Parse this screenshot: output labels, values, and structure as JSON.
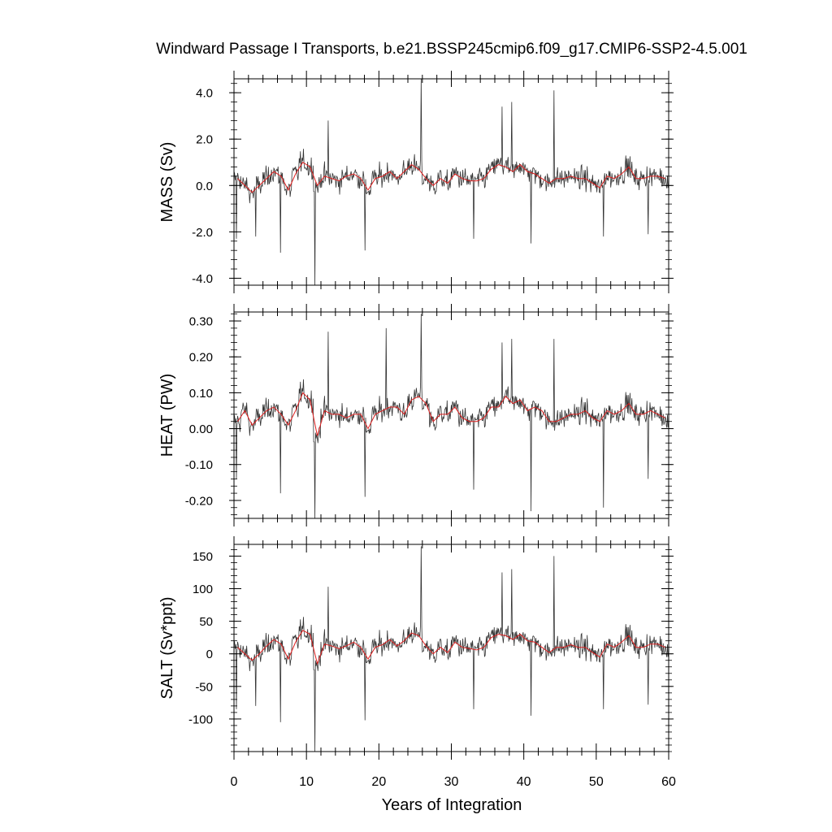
{
  "chart_data": [
    {
      "type": "line",
      "title": "Windward Passage I Transports, b.e21.BSSP245cmip6.f09_g17.CMIP6-SSP2-4.5.001",
      "xlabel": "Years of Integration",
      "xlim": [
        0,
        60
      ],
      "x_ticks": [
        "0",
        "10",
        "20",
        "30",
        "40",
        "50",
        "60"
      ],
      "panels": [
        {
          "ylabel": "MASS (Sv)",
          "ylim": [
            -4.3,
            4.6
          ],
          "y_ticks": [
            {
              "value": -4.0,
              "label": "-4.0"
            },
            {
              "value": -2.0,
              "label": "-2.0"
            },
            {
              "value": 0.0,
              "label": "0.0"
            },
            {
              "value": 2.0,
              "label": "2.0"
            },
            {
              "value": 4.0,
              "label": "4.0"
            }
          ],
          "annual_x": [
            0.5,
            1.5,
            2.5,
            3.5,
            4.5,
            5.5,
            6.5,
            7.5,
            8.5,
            9.5,
            10.5,
            11.5,
            12.5,
            13.5,
            14.5,
            15.5,
            16.5,
            17.5,
            18.5,
            19.5,
            20.5,
            21.5,
            22.5,
            23.5,
            24.5,
            25.5,
            26.5,
            27.5,
            28.5,
            29.5,
            30.5,
            31.5,
            32.5,
            33.5,
            34.5,
            35.5,
            36.5,
            37.5,
            38.5,
            39.5,
            40.5,
            41.5,
            42.5,
            43.5,
            44.5,
            45.5,
            46.5,
            47.5,
            48.5,
            49.5,
            50.5,
            51.5,
            52.5,
            53.5,
            54.5,
            55.5,
            56.5,
            57.5,
            58.5,
            59.5
          ],
          "annual_values": [
            0.3,
            0.0,
            -0.3,
            0.0,
            0.3,
            0.6,
            0.4,
            -0.2,
            0.5,
            1.0,
            0.8,
            0.0,
            0.4,
            0.3,
            0.2,
            0.4,
            0.5,
            0.3,
            -0.2,
            0.3,
            0.4,
            0.6,
            0.3,
            0.6,
            0.9,
            0.7,
            0.3,
            0.0,
            0.3,
            0.1,
            0.5,
            0.3,
            0.2,
            0.2,
            0.3,
            0.7,
            0.9,
            0.8,
            0.6,
            0.9,
            0.6,
            0.5,
            0.3,
            0.1,
            0.3,
            0.3,
            0.4,
            0.3,
            0.3,
            0.1,
            -0.1,
            0.4,
            0.3,
            0.5,
            0.8,
            0.3,
            0.3,
            0.4,
            0.4,
            0.3
          ],
          "spikes": [
            [
              11.2,
              -4.3
            ],
            [
              25.8,
              4.6
            ],
            [
              44.2,
              4.1
            ],
            [
              38.3,
              3.6
            ],
            [
              37.0,
              3.4
            ],
            [
              13.0,
              2.8
            ],
            [
              6.4,
              -2.9
            ],
            [
              18.1,
              -2.8
            ],
            [
              51.0,
              -2.2
            ],
            [
              57.2,
              -2.1
            ],
            [
              41.0,
              -2.5
            ],
            [
              33.1,
              -2.3
            ],
            [
              0.3,
              -2.3
            ],
            [
              3.0,
              -2.2
            ]
          ]
        },
        {
          "ylabel": "HEAT (PW)",
          "ylim": [
            -0.25,
            0.325
          ],
          "y_ticks": [
            {
              "value": -0.2,
              "label": "-0.20"
            },
            {
              "value": -0.1,
              "label": "-0.10"
            },
            {
              "value": 0.0,
              "label": "0.00"
            },
            {
              "value": 0.1,
              "label": "0.10"
            },
            {
              "value": 0.2,
              "label": "0.20"
            },
            {
              "value": 0.3,
              "label": "0.30"
            }
          ],
          "annual_x": [
            0.5,
            1.5,
            2.5,
            3.5,
            4.5,
            5.5,
            6.5,
            7.5,
            8.5,
            9.5,
            10.5,
            11.5,
            12.5,
            13.5,
            14.5,
            15.5,
            16.5,
            17.5,
            18.5,
            19.5,
            20.5,
            21.5,
            22.5,
            23.5,
            24.5,
            25.5,
            26.5,
            27.5,
            28.5,
            29.5,
            30.5,
            31.5,
            32.5,
            33.5,
            34.5,
            35.5,
            36.5,
            37.5,
            38.5,
            39.5,
            40.5,
            41.5,
            42.5,
            43.5,
            44.5,
            45.5,
            46.5,
            47.5,
            48.5,
            49.5,
            50.5,
            51.5,
            52.5,
            53.5,
            54.5,
            55.5,
            56.5,
            57.5,
            58.5,
            59.5
          ],
          "annual_values": [
            0.02,
            0.05,
            0.01,
            0.03,
            0.05,
            0.06,
            0.04,
            0.01,
            0.05,
            0.1,
            0.08,
            -0.02,
            0.05,
            0.04,
            0.04,
            0.03,
            0.04,
            0.04,
            0.0,
            0.04,
            0.05,
            0.06,
            0.06,
            0.04,
            0.08,
            0.09,
            0.07,
            0.02,
            0.04,
            0.04,
            0.06,
            0.03,
            0.02,
            0.02,
            0.03,
            0.06,
            0.06,
            0.09,
            0.07,
            0.08,
            0.05,
            0.06,
            0.05,
            0.02,
            0.02,
            0.03,
            0.04,
            0.04,
            0.05,
            0.03,
            0.02,
            0.05,
            0.04,
            0.05,
            0.07,
            0.04,
            0.04,
            0.05,
            0.04,
            0.03
          ],
          "spikes": [
            [
              11.2,
              -0.25
            ],
            [
              25.8,
              0.32
            ],
            [
              13.0,
              0.27
            ],
            [
              21.0,
              0.28
            ],
            [
              44.2,
              0.25
            ],
            [
              38.3,
              0.25
            ],
            [
              37.0,
              0.24
            ],
            [
              6.4,
              -0.18
            ],
            [
              18.1,
              -0.19
            ],
            [
              41.0,
              -0.23
            ],
            [
              51.0,
              -0.22
            ],
            [
              33.1,
              -0.17
            ],
            [
              0.3,
              -0.14
            ],
            [
              57.2,
              -0.14
            ]
          ]
        },
        {
          "ylabel": "SALT (Sv*ppt)",
          "ylim": [
            -150,
            168
          ],
          "y_ticks": [
            {
              "value": -100,
              "label": "-100"
            },
            {
              "value": -50,
              "label": "-50"
            },
            {
              "value": 0,
              "label": "0"
            },
            {
              "value": 50,
              "label": "50"
            },
            {
              "value": 100,
              "label": "100"
            },
            {
              "value": 150,
              "label": "150"
            }
          ],
          "annual_x": [
            0.5,
            1.5,
            2.5,
            3.5,
            4.5,
            5.5,
            6.5,
            7.5,
            8.5,
            9.5,
            10.5,
            11.5,
            12.5,
            13.5,
            14.5,
            15.5,
            16.5,
            17.5,
            18.5,
            19.5,
            20.5,
            21.5,
            22.5,
            23.5,
            24.5,
            25.5,
            26.5,
            27.5,
            28.5,
            29.5,
            30.5,
            31.5,
            32.5,
            33.5,
            34.5,
            35.5,
            36.5,
            37.5,
            38.5,
            39.5,
            40.5,
            41.5,
            42.5,
            43.5,
            44.5,
            45.5,
            46.5,
            47.5,
            48.5,
            49.5,
            50.5,
            51.5,
            52.5,
            53.5,
            54.5,
            55.5,
            56.5,
            57.5,
            58.5,
            59.5
          ],
          "annual_values": [
            10,
            0,
            -10,
            0,
            12,
            22,
            15,
            -8,
            18,
            36,
            30,
            -15,
            15,
            12,
            8,
            12,
            18,
            10,
            -8,
            10,
            14,
            22,
            12,
            20,
            32,
            28,
            12,
            0,
            10,
            2,
            18,
            10,
            8,
            6,
            10,
            25,
            30,
            28,
            22,
            30,
            20,
            18,
            10,
            2,
            10,
            10,
            14,
            10,
            10,
            2,
            -5,
            15,
            10,
            18,
            28,
            10,
            10,
            15,
            15,
            10
          ],
          "spikes": [
            [
              11.2,
              -150
            ],
            [
              25.8,
              165
            ],
            [
              44.2,
              150
            ],
            [
              38.3,
              130
            ],
            [
              37.0,
              125
            ],
            [
              13.0,
              103
            ],
            [
              6.4,
              -105
            ],
            [
              18.1,
              -102
            ],
            [
              41.0,
              -95
            ],
            [
              51.0,
              -85
            ],
            [
              57.2,
              -78
            ],
            [
              33.1,
              -85
            ],
            [
              0.3,
              -85
            ],
            [
              3.0,
              -80
            ]
          ]
        }
      ]
    }
  ],
  "colors": {
    "monthly_series": "#333333",
    "annual_mean": "#e02020",
    "axes": "#000000"
  }
}
